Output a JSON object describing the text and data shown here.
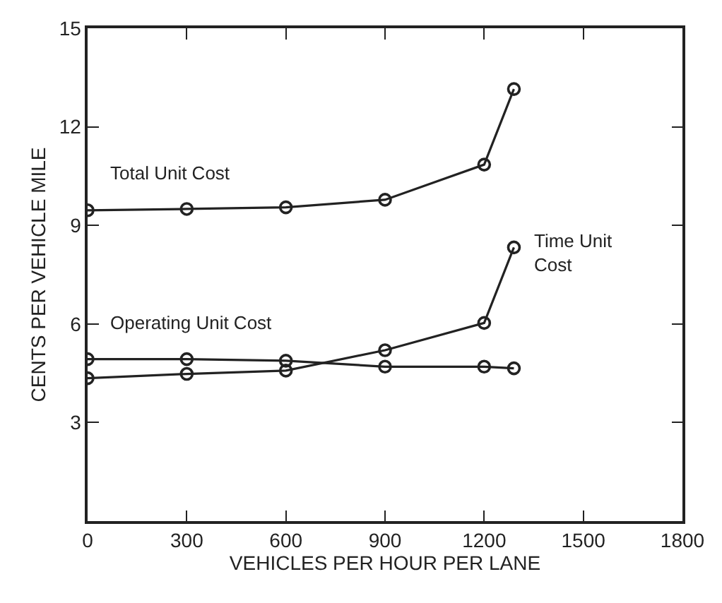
{
  "chart_data": {
    "type": "line",
    "xlabel": "VEHICLES PER HOUR PER LANE",
    "ylabel": "CENTS PER VEHICLE MILE",
    "x": [
      0,
      300,
      600,
      900,
      1200,
      1290
    ],
    "series": [
      {
        "name": "Total Unit Cost",
        "color": "#222222",
        "values": [
          9.46,
          9.5,
          9.55,
          9.78,
          10.85,
          13.15
        ]
      },
      {
        "name": "Time Unit Cost",
        "color": "#222222",
        "values": [
          4.35,
          4.48,
          4.58,
          5.2,
          6.03,
          8.33
        ]
      },
      {
        "name": "Operating Unit Cost",
        "color": "#222222",
        "values": [
          4.93,
          4.93,
          4.88,
          4.7,
          4.7,
          4.65
        ]
      }
    ],
    "xlim": [
      0,
      1800
    ],
    "xticks": [
      0,
      300,
      600,
      900,
      1200,
      1500,
      1800
    ],
    "ylim": [
      0,
      15
    ],
    "yticks": [
      {
        "value": 0,
        "label": null
      },
      3,
      6,
      9,
      12,
      15
    ],
    "legend": false,
    "marker": "circle",
    "line_style": "solid"
  }
}
